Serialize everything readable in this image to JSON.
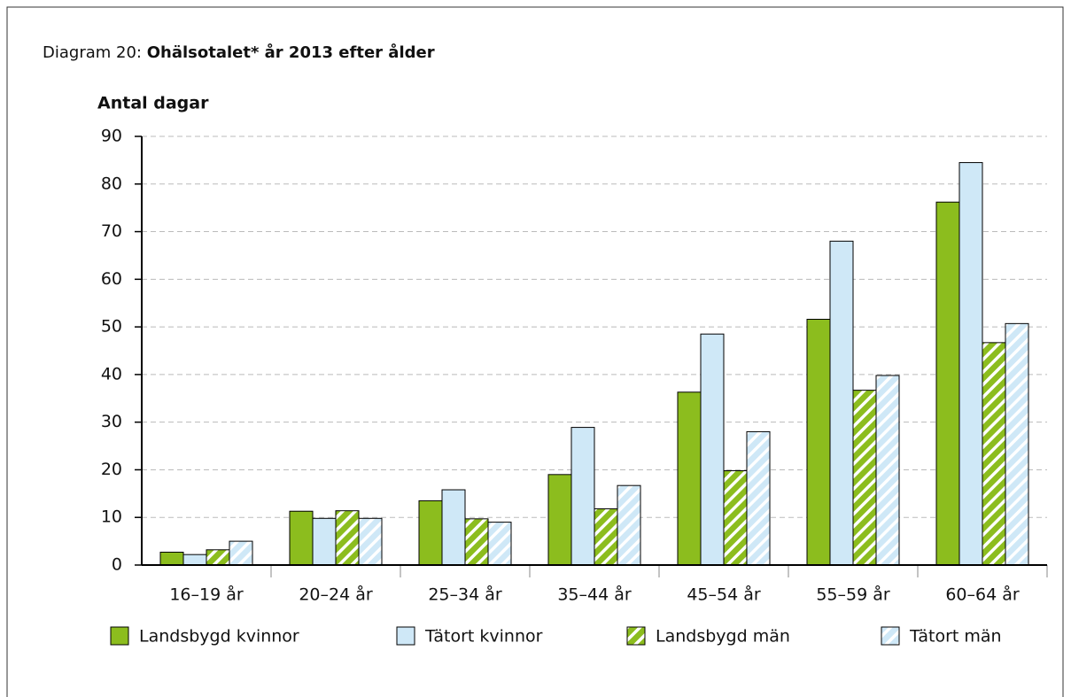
{
  "chart_data": {
    "type": "bar",
    "title_prefix": "Diagram 20:",
    "title": "Ohälsotalet* år 2013 efter ålder",
    "y_label": "Antal dagar",
    "categories": [
      "16–19 år",
      "20–24 år",
      "25–34 år",
      "35–44 år",
      "45–54 år",
      "55–59 år",
      "60–64 år"
    ],
    "series": [
      {
        "name": "Landsbygd kvinnor",
        "color": "#8cbd1e",
        "hatch": false,
        "values": [
          2.7,
          11.3,
          13.5,
          19.0,
          36.3,
          51.6,
          76.2
        ]
      },
      {
        "name": "Tätort kvinnor",
        "color": "#cfe8f7",
        "hatch": false,
        "values": [
          2.2,
          9.8,
          15.8,
          28.9,
          48.5,
          68.0,
          84.5
        ]
      },
      {
        "name": "Landsbygd män",
        "color": "#8cbd1e",
        "hatch": true,
        "values": [
          3.2,
          11.4,
          9.7,
          11.8,
          19.8,
          36.7,
          46.7
        ]
      },
      {
        "name": "Tätort män",
        "color": "#cfe8f7",
        "hatch": true,
        "values": [
          5.0,
          9.8,
          9.0,
          16.7,
          28.0,
          39.8,
          50.7
        ]
      }
    ],
    "ylim": [
      0,
      90
    ],
    "yticks": [
      0,
      10,
      20,
      30,
      40,
      50,
      60,
      70,
      80,
      90
    ],
    "grid": true,
    "legend": "bottom"
  }
}
